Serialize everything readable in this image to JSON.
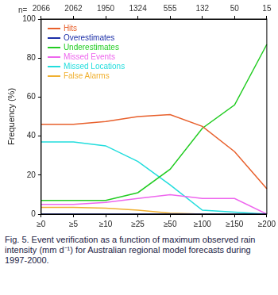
{
  "chart_data": {
    "type": "line",
    "categories": [
      "≥0",
      "≥5",
      "≥10",
      "≥25",
      "≥50",
      "≥100",
      "≥150",
      "≥200"
    ],
    "sample_size_label": "n=",
    "sample_sizes": [
      2066,
      2062,
      1950,
      1324,
      555,
      132,
      50,
      15
    ],
    "y_label": "Frequency (%)",
    "ylim": [
      0,
      100
    ],
    "yticks": [
      0,
      20,
      40,
      60,
      80,
      100
    ],
    "grid": false,
    "legend": "upper left",
    "caption": "Fig. 5. Event verification as a function of maximum observed rain intensity (mm d⁻¹) for Australian regional model forecasts during 1997-2000.",
    "series": [
      {
        "name": "Hits",
        "color": "#e8602c",
        "values": [
          46,
          46,
          47.5,
          50,
          51,
          45,
          32,
          13
        ]
      },
      {
        "name": "Overestimates",
        "color": "#1c2fa8",
        "values": [
          0,
          0,
          0,
          0,
          0,
          0,
          0,
          0
        ]
      },
      {
        "name": "Underestimates",
        "color": "#22cc22",
        "values": [
          7,
          7,
          7,
          11,
          23,
          44,
          56,
          87
        ]
      },
      {
        "name": "Missed Events",
        "color": "#ee66ee",
        "values": [
          5,
          5,
          6,
          8,
          10,
          8,
          8,
          0
        ]
      },
      {
        "name": "Missed Locations",
        "color": "#22dddd",
        "values": [
          37,
          37,
          35,
          27,
          15,
          2,
          1,
          0
        ]
      },
      {
        "name": "False Alarms",
        "color": "#f0b030",
        "values": [
          3.5,
          3.5,
          3,
          2,
          0.5,
          0,
          0,
          0
        ]
      }
    ]
  }
}
